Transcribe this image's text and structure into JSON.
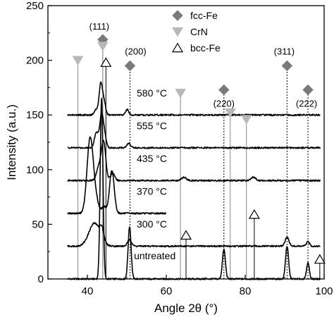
{
  "chart_data": {
    "type": "line",
    "xlabel": "Angle 2θ (°)",
    "ylabel": "Intensity (a.u.)",
    "xlim": [
      30,
      100
    ],
    "ylim": [
      0,
      250
    ],
    "xticks": [
      40,
      60,
      80,
      100
    ],
    "yticks": [
      0,
      50,
      100,
      150,
      200,
      250
    ],
    "legend": {
      "placement": "top-right",
      "entries": [
        {
          "name": "fcc-Fe",
          "marker": "diamond",
          "color": "#7a7a7a"
        },
        {
          "name": "CrN",
          "marker": "triangle-down",
          "color": "#b8b8b8"
        },
        {
          "name": "bcc-Fe",
          "marker": "triangle-up-open",
          "color": "#000000"
        }
      ]
    },
    "series": [
      {
        "name": "untreated",
        "offset": 0,
        "x_start": 35,
        "x_end": 99,
        "peaks": [
          [
            43.6,
            165,
            0.35
          ],
          [
            50.7,
            48,
            0.38
          ],
          [
            74.6,
            27,
            0.38
          ],
          [
            90.6,
            30,
            0.38
          ],
          [
            95.9,
            15,
            0.35
          ]
        ]
      },
      {
        "name": "300 °C",
        "offset": 30,
        "x_start": 35,
        "x_end": 99,
        "peaks": [
          [
            41.8,
            21,
            1.4
          ],
          [
            43.7,
            10,
            0.5
          ],
          [
            50.7,
            6,
            0.5
          ],
          [
            90.6,
            8,
            0.5
          ],
          [
            95.9,
            4,
            0.4
          ]
        ]
      },
      {
        "name": "370 °C",
        "offset": 60,
        "x_start": 35,
        "x_end": 60,
        "peaks": [
          [
            40.6,
            58,
            0.75
          ],
          [
            41.6,
            20,
            0.9
          ],
          [
            46.2,
            39,
            0.6
          ],
          [
            44.2,
            6,
            0.5
          ]
        ]
      },
      {
        "name": "435 °C",
        "offset": 90,
        "x_start": 35,
        "x_end": 99,
        "peaks": [
          [
            44.1,
            35,
            0.55
          ],
          [
            42.9,
            12,
            0.6
          ],
          [
            46.4,
            7,
            0.5
          ],
          [
            64.5,
            3,
            0.6
          ],
          [
            82.1,
            3,
            0.6
          ]
        ]
      },
      {
        "name": "555 °C",
        "offset": 120,
        "x_start": 35,
        "x_end": 99,
        "peaks": [
          [
            42.3,
            14,
            0.5
          ],
          [
            43.6,
            30,
            0.45
          ],
          [
            44.4,
            10,
            0.4
          ],
          [
            50.5,
            4,
            0.5
          ]
        ]
      },
      {
        "name": "580 °C",
        "offset": 150,
        "x_start": 35,
        "x_end": 99,
        "peaks": [
          [
            43.4,
            28,
            0.4
          ],
          [
            44.2,
            12,
            0.4
          ],
          [
            42.3,
            5,
            0.5
          ],
          [
            50.1,
            5,
            0.4
          ]
        ]
      }
    ],
    "reference_lines": {
      "fcc-Fe": [
        {
          "x": 43.9,
          "marker_y": 219,
          "hkl": "(111)"
        },
        {
          "x": 50.8,
          "marker_y": 195,
          "hkl": "(200)"
        },
        {
          "x": 74.6,
          "marker_y": 173,
          "hkl": "(220)"
        },
        {
          "x": 90.6,
          "marker_y": 195,
          "hkl": "(311)"
        },
        {
          "x": 95.9,
          "marker_y": 173,
          "hkl": "(222)"
        }
      ],
      "CrN": [
        {
          "x": 37.6,
          "marker_y": 200
        },
        {
          "x": 43.9,
          "marker_y": 213
        },
        {
          "x": 63.6,
          "marker_y": 170
        },
        {
          "x": 76.2,
          "marker_y": 152
        },
        {
          "x": 80.3,
          "marker_y": 146
        }
      ],
      "bcc-Fe": [
        {
          "x": 44.7,
          "marker_y": 198
        },
        {
          "x": 65.0,
          "marker_y": 40
        },
        {
          "x": 82.3,
          "marker_y": 59
        },
        {
          "x": 98.9,
          "marker_y": 18
        }
      ]
    }
  }
}
